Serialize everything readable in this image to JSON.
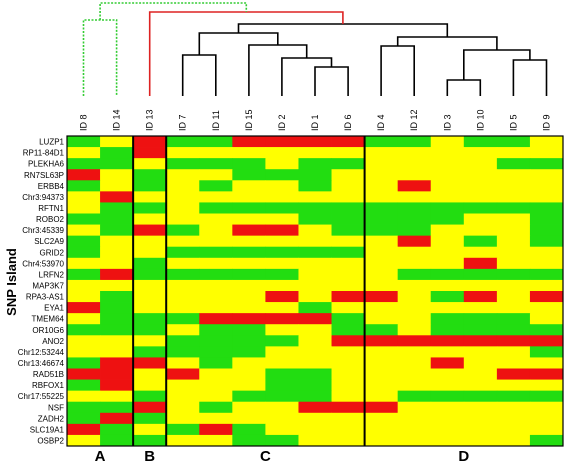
{
  "chart_data": {
    "type": "heatmap",
    "ylabel": "SNP Island",
    "colors": {
      "low": "#22dd11",
      "mid": "#ffff00",
      "high": "#ee1111",
      "tree_a": "#33cc33",
      "tree_b": "#dd2222",
      "tree_c": "#000000"
    },
    "columns": [
      "ID 8",
      "ID 14",
      "ID 13",
      "ID 7",
      "ID 11",
      "ID 15",
      "ID 2",
      "ID 1",
      "ID 6",
      "ID 4",
      "ID 12",
      "ID 3",
      "ID 10",
      "ID 5",
      "ID 9"
    ],
    "groups": [
      {
        "label": "A",
        "columns": [
          "ID 8",
          "ID 14"
        ]
      },
      {
        "label": "B",
        "columns": [
          "ID 13"
        ]
      },
      {
        "label": "C",
        "columns": [
          "ID 7",
          "ID 11",
          "ID 15",
          "ID 2",
          "ID 1",
          "ID 6"
        ]
      },
      {
        "label": "D",
        "columns": [
          "ID 4",
          "ID 12",
          "ID 3",
          "ID 10",
          "ID 5",
          "ID 9"
        ]
      }
    ],
    "row_labels": [
      "LUZP1",
      "RP11-84D1",
      "PLEKHA6",
      "RN7SL63P",
      "ERBB4",
      "Chr3:94373",
      "RFTN1",
      "ROBO2",
      "Chr3:45339",
      "SLC2A9",
      "GRID2",
      "Chr4:53970",
      "LRFN2",
      "MAP3K7",
      "RPA3-AS1",
      "EYA1",
      "TMEM64",
      "OR10G6",
      "ANO2",
      "Chr12:53244",
      "Chr13:46674",
      "RAD51B",
      "RBFOX1",
      "Chr17:55225",
      "NSF",
      "ZADH2",
      "SLC19A1",
      "OSBP2"
    ],
    "values": [
      [
        0,
        1,
        2,
        0,
        0,
        2,
        2,
        2,
        2,
        0,
        0,
        1,
        0,
        0,
        1
      ],
      [
        1,
        0,
        2,
        1,
        1,
        1,
        1,
        1,
        1,
        1,
        1,
        1,
        1,
        1,
        1
      ],
      [
        0,
        0,
        1,
        0,
        0,
        0,
        1,
        0,
        0,
        1,
        1,
        1,
        1,
        0,
        0
      ],
      [
        2,
        1,
        0,
        1,
        1,
        0,
        0,
        0,
        1,
        1,
        1,
        1,
        1,
        1,
        1
      ],
      [
        0,
        1,
        0,
        1,
        0,
        1,
        1,
        0,
        1,
        1,
        2,
        1,
        1,
        1,
        1
      ],
      [
        1,
        2,
        1,
        1,
        1,
        1,
        1,
        1,
        1,
        1,
        1,
        1,
        1,
        1,
        1
      ],
      [
        1,
        0,
        0,
        1,
        0,
        0,
        0,
        0,
        0,
        0,
        0,
        0,
        0,
        0,
        0
      ],
      [
        0,
        0,
        1,
        1,
        1,
        1,
        1,
        0,
        0,
        0,
        0,
        0,
        1,
        1,
        0
      ],
      [
        1,
        0,
        2,
        0,
        1,
        2,
        2,
        1,
        0,
        0,
        0,
        1,
        1,
        1,
        0
      ],
      [
        0,
        1,
        1,
        1,
        1,
        1,
        1,
        1,
        1,
        1,
        2,
        1,
        0,
        1,
        0
      ],
      [
        0,
        1,
        1,
        0,
        0,
        0,
        0,
        0,
        0,
        1,
        1,
        1,
        1,
        1,
        1
      ],
      [
        1,
        1,
        0,
        1,
        1,
        1,
        1,
        1,
        1,
        1,
        1,
        1,
        2,
        1,
        1
      ],
      [
        0,
        2,
        0,
        0,
        0,
        0,
        0,
        1,
        1,
        1,
        0,
        0,
        0,
        0,
        0
      ],
      [
        1,
        1,
        1,
        1,
        1,
        1,
        1,
        1,
        1,
        1,
        1,
        1,
        1,
        1,
        1
      ],
      [
        1,
        0,
        1,
        1,
        1,
        1,
        2,
        1,
        2,
        2,
        1,
        0,
        2,
        1,
        2
      ],
      [
        2,
        0,
        1,
        1,
        1,
        1,
        1,
        0,
        1,
        1,
        1,
        1,
        1,
        1,
        1
      ],
      [
        1,
        0,
        0,
        0,
        2,
        2,
        2,
        2,
        0,
        1,
        1,
        0,
        0,
        0,
        1
      ],
      [
        0,
        0,
        0,
        1,
        0,
        0,
        1,
        1,
        0,
        0,
        1,
        0,
        0,
        0,
        0
      ],
      [
        1,
        1,
        1,
        0,
        0,
        0,
        0,
        1,
        2,
        2,
        2,
        2,
        2,
        2,
        2
      ],
      [
        1,
        1,
        0,
        0,
        0,
        0,
        1,
        1,
        1,
        1,
        1,
        1,
        1,
        1,
        0
      ],
      [
        0,
        2,
        2,
        1,
        0,
        1,
        1,
        1,
        1,
        1,
        1,
        2,
        1,
        1,
        1
      ],
      [
        2,
        2,
        1,
        2,
        1,
        1,
        0,
        0,
        1,
        1,
        1,
        1,
        1,
        2,
        2
      ],
      [
        0,
        2,
        1,
        1,
        1,
        1,
        0,
        0,
        1,
        1,
        1,
        1,
        1,
        1,
        1
      ],
      [
        1,
        1,
        0,
        1,
        1,
        0,
        0,
        0,
        1,
        1,
        0,
        0,
        0,
        0,
        0
      ],
      [
        0,
        0,
        2,
        1,
        0,
        1,
        1,
        2,
        2,
        2,
        1,
        1,
        1,
        1,
        1
      ],
      [
        0,
        2,
        0,
        1,
        1,
        1,
        1,
        1,
        1,
        1,
        1,
        1,
        1,
        1,
        1
      ],
      [
        2,
        0,
        1,
        0,
        2,
        0,
        1,
        1,
        1,
        1,
        1,
        1,
        1,
        1,
        1
      ],
      [
        1,
        0,
        0,
        1,
        1,
        0,
        0,
        1,
        1,
        1,
        1,
        1,
        1,
        1,
        0
      ]
    ]
  }
}
